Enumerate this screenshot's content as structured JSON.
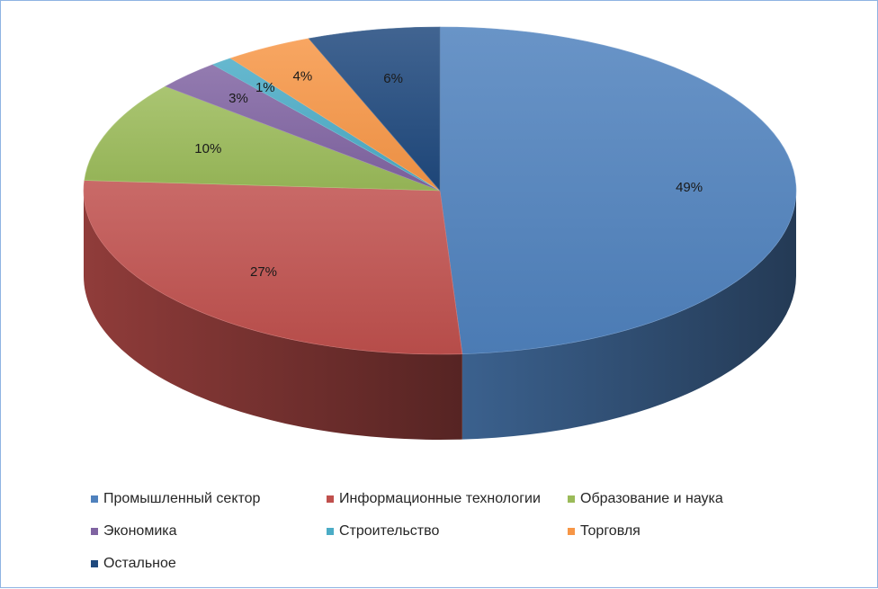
{
  "chart_data": {
    "type": "pie",
    "style": "3d",
    "legend_position": "bottom",
    "categories": [
      "Промышленный сектор",
      "Информационные технологии",
      "Образование и наука",
      "Экономика",
      "Строительство",
      "Торговля",
      "Остальное"
    ],
    "values": [
      49,
      27,
      10,
      3,
      1,
      4,
      6
    ],
    "value_labels": [
      "49%",
      "27%",
      "10%",
      "3%",
      "1%",
      "4%",
      "6%"
    ],
    "colors": [
      "#4f81bd",
      "#c0504d",
      "#9bbb59",
      "#8064a2",
      "#4bacc6",
      "#f79646",
      "#1f497d"
    ]
  }
}
